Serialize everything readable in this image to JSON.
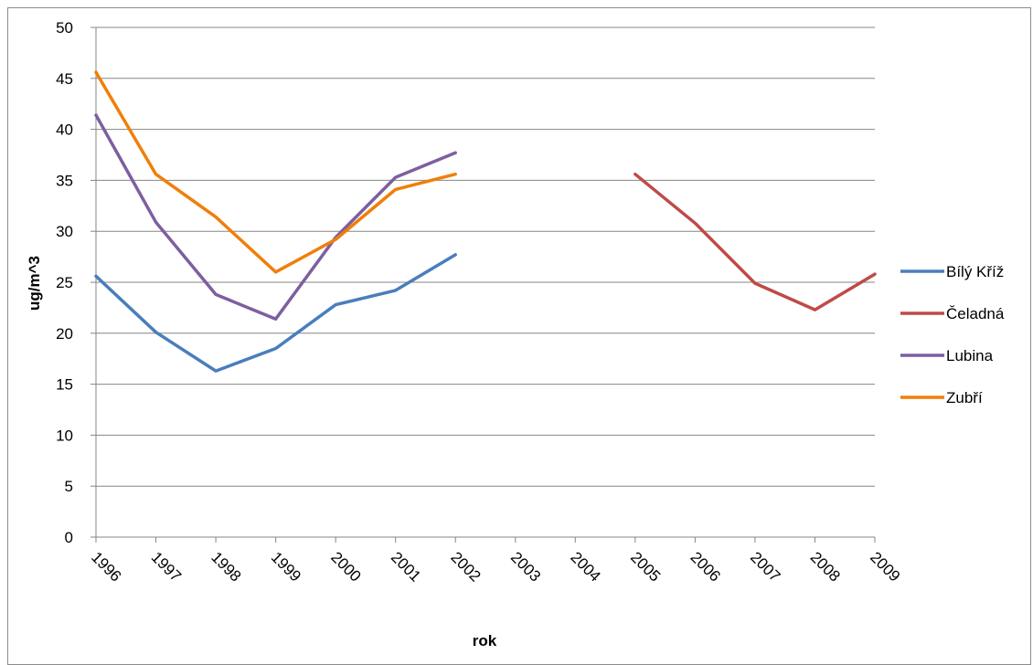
{
  "chart_data": {
    "type": "line",
    "title": "",
    "xlabel": "rok",
    "ylabel": "ug/m^3",
    "categories": [
      "1996",
      "1997",
      "1998",
      "1999",
      "2000",
      "2001",
      "2002",
      "2003",
      "2004",
      "2005",
      "2006",
      "2007",
      "2008",
      "2009"
    ],
    "ylim": [
      0,
      50
    ],
    "yticks": [
      0,
      5,
      10,
      15,
      20,
      25,
      30,
      35,
      40,
      45,
      50
    ],
    "grid": "horizontal",
    "legend_position": "right",
    "series": [
      {
        "name": "Bílý Kříž",
        "color": "#4a7ebb",
        "values": [
          25.6,
          20.1,
          16.3,
          18.5,
          22.8,
          24.2,
          27.7,
          null,
          null,
          null,
          null,
          null,
          null,
          null
        ]
      },
      {
        "name": "Čeladná",
        "color": "#be4b48",
        "values": [
          null,
          null,
          null,
          null,
          null,
          null,
          null,
          null,
          null,
          35.6,
          30.8,
          24.9,
          22.3,
          25.8
        ]
      },
      {
        "name": "Lubina",
        "color": "#7d5fa0",
        "values": [
          41.4,
          30.9,
          23.8,
          21.4,
          29.4,
          35.3,
          37.7,
          null,
          null,
          null,
          null,
          null,
          null,
          null
        ]
      },
      {
        "name": "Zubří",
        "color": "#f07f09",
        "values": [
          45.6,
          35.6,
          31.4,
          26.0,
          29.2,
          34.1,
          35.6,
          null,
          null,
          null,
          null,
          null,
          null,
          null
        ]
      }
    ]
  }
}
